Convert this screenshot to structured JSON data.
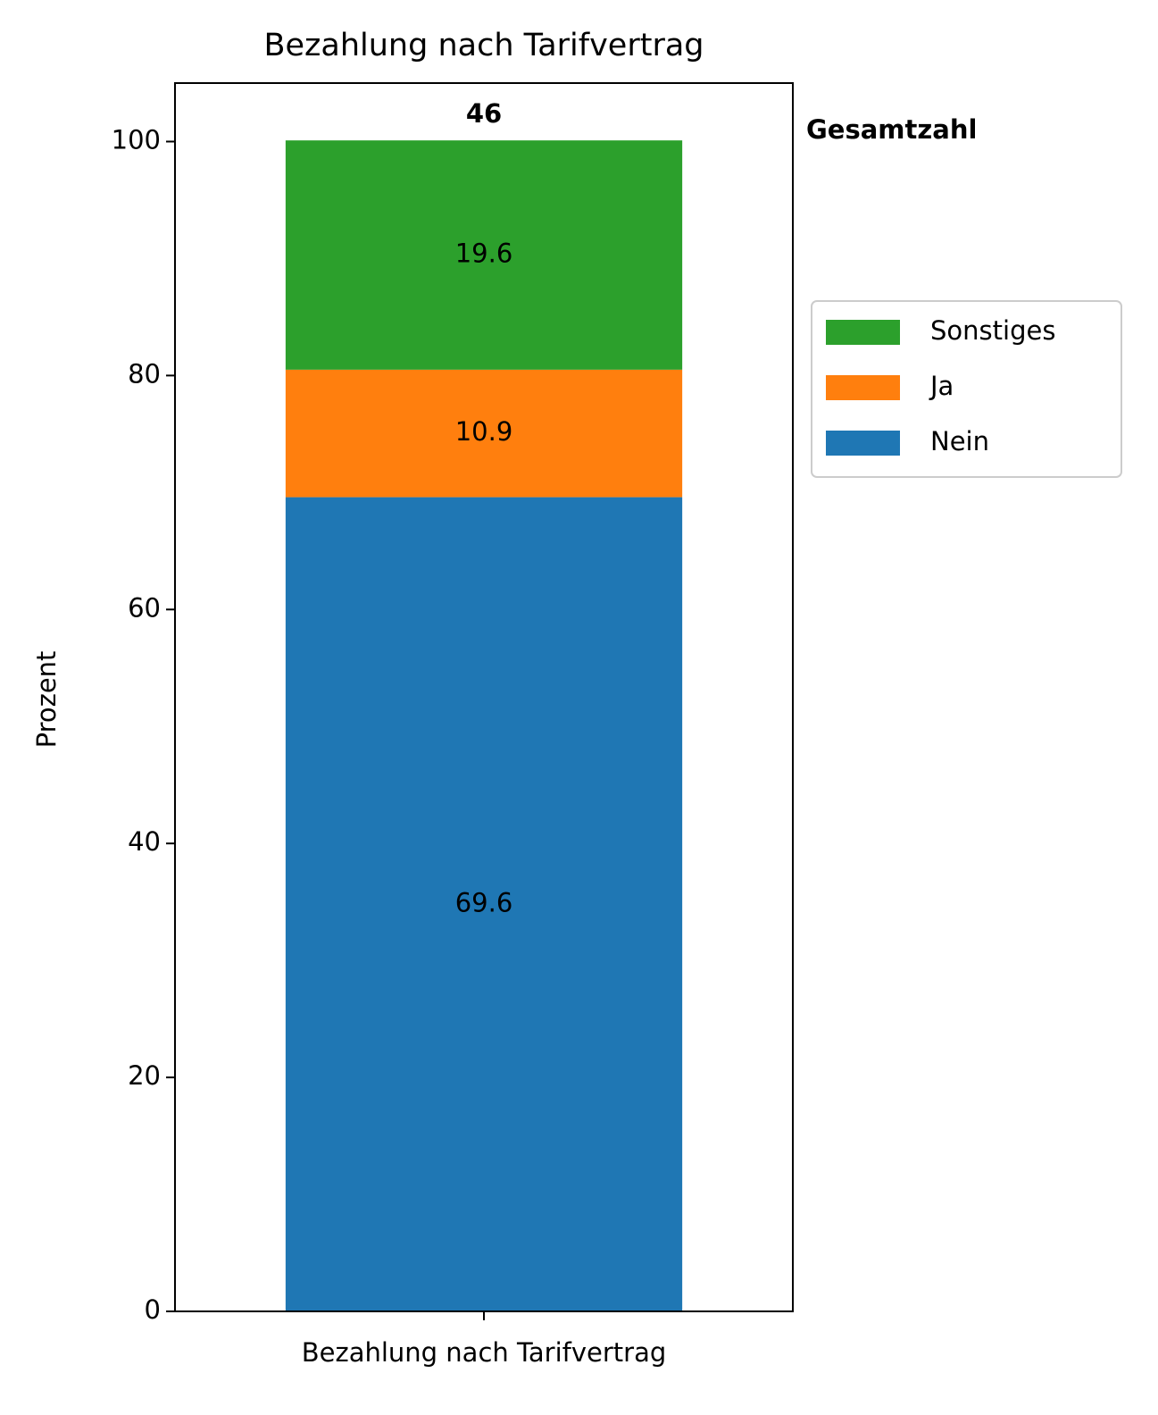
{
  "chart_data": {
    "type": "stacked_bar",
    "title": "Bezahlung nach Tarifvertrag",
    "categories": [
      "Bezahlung nach Tarifvertrag"
    ],
    "series": [
      {
        "name": "Nein",
        "color": "#1f77b4",
        "values": [
          69.6
        ]
      },
      {
        "name": "Ja",
        "color": "#ff7f0e",
        "values": [
          10.9
        ]
      },
      {
        "name": "Sonstiges",
        "color": "#2ca02c",
        "values": [
          19.6
        ]
      }
    ],
    "total": 46,
    "total_label": "Gesamtzahl",
    "ylabel": "Prozent",
    "ylim": [
      0,
      105
    ],
    "yticks": [
      0,
      20,
      40,
      60,
      80,
      100
    ],
    "legend": "right"
  }
}
